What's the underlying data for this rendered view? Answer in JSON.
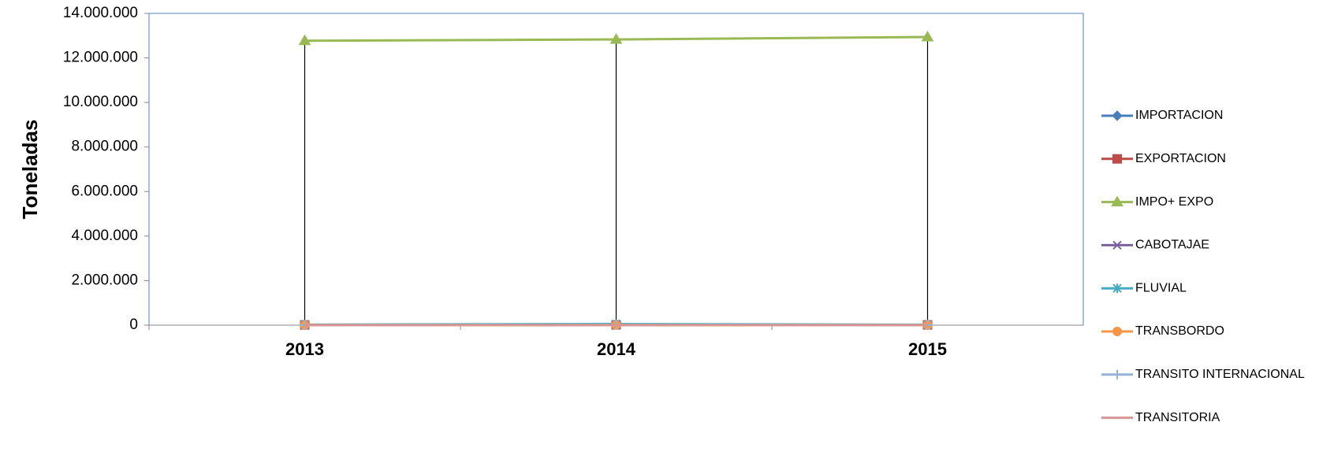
{
  "chart_data": {
    "type": "line",
    "y_label": "Toneladas",
    "categories": [
      "2013",
      "2014",
      "2015"
    ],
    "series": [
      {
        "name": "IMPORTACION",
        "color": "#4a7ebb",
        "marker": "diamond",
        "values": [
          15000,
          20000,
          18000
        ]
      },
      {
        "name": "EXPORTACION",
        "color": "#be4b48",
        "marker": "square",
        "values": [
          12000,
          14000,
          13000
        ]
      },
      {
        "name": "IMPO+ EXPO",
        "color": "#98b954",
        "marker": "triangle",
        "values": [
          12770000,
          12830000,
          12940000
        ]
      },
      {
        "name": "CABOTAJAE",
        "color": "#7d60a0",
        "marker": "x",
        "values": [
          5000,
          6000,
          5000
        ]
      },
      {
        "name": "FLUVIAL",
        "color": "#46aac5",
        "marker": "asterisk",
        "values": [
          20000,
          50000,
          20000
        ]
      },
      {
        "name": "TRANSBORDO",
        "color": "#f79646",
        "marker": "circle",
        "values": [
          3000,
          3000,
          3000
        ]
      },
      {
        "name": "TRANSITO INTERNACIONAL",
        "color": "#95b3d7",
        "marker": "plus",
        "values": [
          1000,
          1000,
          1000
        ]
      },
      {
        "name": "TRANSITORIA",
        "color": "#d99694",
        "marker": "none",
        "values": [
          500,
          500,
          500
        ]
      }
    ],
    "ylim": [
      0,
      14000000
    ],
    "yticks": [
      0,
      {
        "value": 2000000,
        "label": "2.000.000"
      },
      {
        "value": 4000000,
        "label": "4.000.000"
      },
      {
        "value": 6000000,
        "label": "6.000.000"
      },
      {
        "value": 8000000,
        "label": "8.000.000"
      },
      {
        "value": 10000000,
        "label": "10.000.000"
      },
      {
        "value": 12000000,
        "label": "12.000.000"
      },
      {
        "value": 14000000,
        "label": "14.000.000"
      }
    ],
    "grid": false,
    "drop_lines": true,
    "legend": "right"
  }
}
